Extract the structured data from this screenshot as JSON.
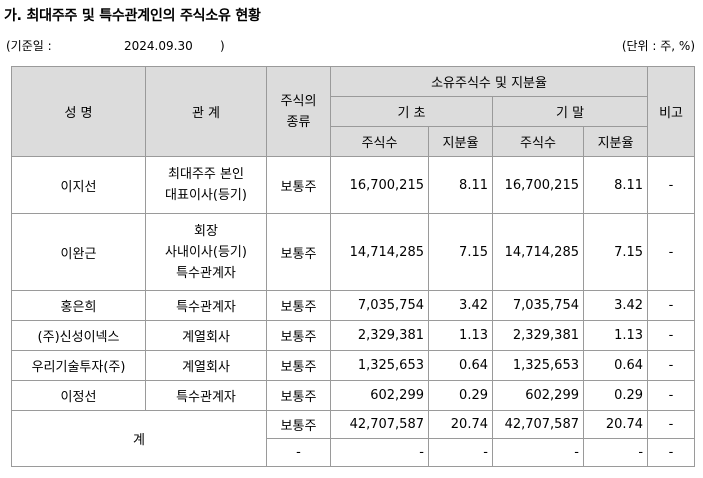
{
  "title": "가. 최대주주 및 특수관계인의 주식소유 현황",
  "base_label": "(기준일 :",
  "base_date": "2024.09.30",
  "base_close": ")",
  "unit": "(단위 : 주, %)",
  "headers": {
    "name": "성 명",
    "relation": "관 계",
    "stock_type": [
      "주식의",
      "종류"
    ],
    "holdings": "소유주식수 및 지분율",
    "start": "기 초",
    "end": "기 말",
    "shares": "주식수",
    "ratio": "지분율",
    "note": "비고"
  },
  "rows": [
    {
      "name": "이지선",
      "relation": [
        "최대주주 본인",
        "대표이사(등기)"
      ],
      "type": "보통주",
      "start_shares": "16,700,215",
      "start_ratio": "8.11",
      "end_shares": "16,700,215",
      "end_ratio": "8.11",
      "note": "-"
    },
    {
      "name": "이완근",
      "relation": [
        "회장",
        "사내이사(등기)",
        "특수관계자"
      ],
      "type": "보통주",
      "start_shares": "14,714,285",
      "start_ratio": "7.15",
      "end_shares": "14,714,285",
      "end_ratio": "7.15",
      "note": "-"
    },
    {
      "name": "홍은희",
      "relation": [
        "특수관계자"
      ],
      "type": "보통주",
      "start_shares": "7,035,754",
      "start_ratio": "3.42",
      "end_shares": "7,035,754",
      "end_ratio": "3.42",
      "note": "-"
    },
    {
      "name": "(주)신성이넥스",
      "relation": [
        "계열회사"
      ],
      "type": "보통주",
      "start_shares": "2,329,381",
      "start_ratio": "1.13",
      "end_shares": "2,329,381",
      "end_ratio": "1.13",
      "note": "-"
    },
    {
      "name": "우리기술투자(주)",
      "relation": [
        "계열회사"
      ],
      "type": "보통주",
      "start_shares": "1,325,653",
      "start_ratio": "0.64",
      "end_shares": "1,325,653",
      "end_ratio": "0.64",
      "note": "-"
    },
    {
      "name": "이정선",
      "relation": [
        "특수관계자"
      ],
      "type": "보통주",
      "start_shares": "602,299",
      "start_ratio": "0.29",
      "end_shares": "602,299",
      "end_ratio": "0.29",
      "note": "-"
    }
  ],
  "total": {
    "label": "계",
    "rows": [
      {
        "type": "보통주",
        "start_shares": "42,707,587",
        "start_ratio": "20.74",
        "end_shares": "42,707,587",
        "end_ratio": "20.74",
        "note": "-"
      },
      {
        "type": "-",
        "start_shares": "-",
        "start_ratio": "-",
        "end_shares": "-",
        "end_ratio": "-",
        "note": "-"
      }
    ]
  }
}
